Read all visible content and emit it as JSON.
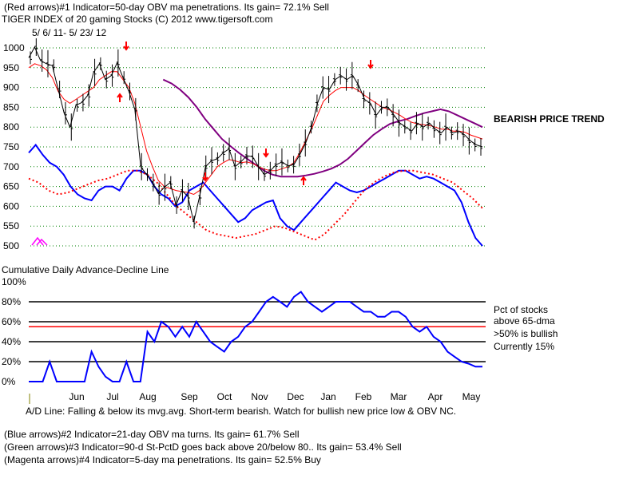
{
  "header": {
    "line1": "(Red arrows)#1 Indicator=50-day OBV ma penetrations. Its gain= 72.1% Sell",
    "line2": "TIGER INDEX of  20 gaming Stocks  (C) 2012  www.tigersoft.com",
    "date_range": "5/ 6/ 11- 5/ 23/ 12"
  },
  "annotations": {
    "bearish_trend": "BEARISH PRICE TREND",
    "ad_title": "Cumulative Daily Advance-Decline Line",
    "pct_label_1": "Pct of stocks",
    "pct_label_2": "above 65-dma",
    "pct_label_3": ">50% is bullish",
    "pct_label_4": "Currently  15%",
    "ad_note": "A/D Line: Falling & below its mvg.avg. Short-term bearish. Watch for bullish new price low & OBV NC."
  },
  "footer": {
    "line1": "(Blue arrows)#2 Indicator=21-day OBV ma turns. Its gain= 61.7% Sell",
    "line2": "(Green arrows)#3 Indicator=90-d St-PctD goes back above 20/below 80.. Its gain= 53.4% Sell",
    "line3": "(Magenta arrows)#4 Indicator=5-day ma penetrations. Its gain= 52.5% Buy"
  },
  "colors": {
    "price": "#000000",
    "ma_short": "#ff0000",
    "ma_long": "#800080",
    "obv": "#0000ff",
    "ma_dotted": "#ff0000",
    "grid": "#008000",
    "ref": "#000000",
    "ref50": "#ff0000",
    "pct": "#0000ff",
    "magenta": "#ff00ff"
  },
  "chart_data": [
    {
      "type": "line",
      "title": "TIGER INDEX of 20 gaming Stocks",
      "y_ticks": [
        1000,
        950,
        900,
        850,
        800,
        750,
        700,
        650,
        600,
        550,
        500
      ],
      "ylim": [
        500,
        1000
      ],
      "x_labels": [
        "Jun",
        "Jul",
        "Aug",
        "Sep",
        "Oct",
        "Nov",
        "Dec",
        "Jan",
        "Feb",
        "Mar",
        "Apr",
        "May"
      ],
      "series": [
        {
          "name": "Price",
          "values": [
            975,
            1002,
            968,
            960,
            955,
            895,
            835,
            800,
            855,
            862,
            880,
            938,
            960,
            920,
            930,
            962,
            925,
            890,
            845,
            700,
            680,
            660,
            632,
            648,
            660,
            603,
            640,
            625,
            560,
            625,
            700,
            715,
            720,
            735,
            745,
            700,
            712,
            728,
            725,
            700,
            680,
            690,
            705,
            712,
            702,
            705,
            730,
            760,
            800,
            860,
            900,
            895,
            920,
            930,
            920,
            930,
            905,
            870,
            860,
            830,
            850,
            850,
            830,
            810,
            800,
            790,
            810,
            800,
            810,
            795,
            785,
            800,
            785,
            790,
            780,
            765,
            755,
            750
          ]
        },
        {
          "name": "MA short",
          "values": [
            950,
            960,
            955,
            945,
            925,
            890,
            870,
            860,
            870,
            880,
            890,
            900,
            920,
            930,
            940,
            940,
            920,
            900,
            860,
            800,
            740,
            700,
            665,
            650,
            645,
            640,
            637,
            635,
            630,
            640,
            660,
            680,
            700,
            710,
            718,
            715,
            710,
            712,
            708,
            700,
            694,
            690,
            690,
            695,
            700,
            710,
            735,
            765,
            795,
            830,
            865,
            880,
            892,
            900,
            900,
            900,
            892,
            880,
            870,
            860,
            850,
            845,
            838,
            830,
            820,
            812,
            808,
            806,
            804,
            800,
            795,
            795,
            790,
            790,
            787,
            780,
            775,
            770
          ]
        },
        {
          "name": "MA long",
          "values": [
            null,
            null,
            null,
            null,
            null,
            null,
            null,
            null,
            null,
            null,
            null,
            null,
            null,
            null,
            null,
            null,
            920,
            910,
            895,
            875,
            850,
            820,
            795,
            770,
            752,
            735,
            720,
            705,
            690,
            680,
            675,
            675,
            675,
            678,
            682,
            688,
            695,
            705,
            720,
            740,
            760,
            780,
            795,
            808,
            815,
            820,
            828,
            835,
            840,
            845,
            840,
            830,
            820,
            810,
            800
          ]
        },
        {
          "name": "OBV",
          "values": [
            735,
            755,
            730,
            710,
            700,
            680,
            650,
            630,
            620,
            615,
            640,
            650,
            650,
            640,
            670,
            690,
            690,
            680,
            650,
            630,
            620,
            600,
            610,
            640,
            650,
            660,
            640,
            620,
            600,
            580,
            560,
            570,
            590,
            600,
            610,
            615,
            570,
            550,
            540,
            560,
            580,
            600,
            620,
            640,
            660,
            650,
            640,
            635,
            640,
            650,
            660,
            670,
            680,
            690,
            690,
            680,
            670,
            675,
            670,
            660,
            650,
            640,
            610,
            560,
            520,
            500
          ]
        },
        {
          "name": "OBV MA dotted",
          "values": [
            670,
            660,
            640,
            630,
            635,
            645,
            655,
            665,
            670,
            680,
            690,
            690,
            680,
            660,
            630,
            600,
            580,
            560,
            540,
            530,
            525,
            520,
            525,
            530,
            540,
            550,
            545,
            535,
            525,
            515,
            530,
            555,
            580,
            610,
            640,
            660,
            675,
            685,
            690,
            690,
            685,
            680,
            670,
            660,
            640,
            620,
            595
          ]
        }
      ]
    },
    {
      "type": "line",
      "title": "Pct of stocks above 65-dma",
      "y_ticks": [
        "100%",
        "80%",
        "60%",
        "40%",
        "20%",
        "0%"
      ],
      "ylim": [
        0,
        100
      ],
      "series": [
        {
          "name": "Pct",
          "values": [
            0,
            0,
            0,
            20,
            0,
            0,
            0,
            0,
            0,
            30,
            15,
            5,
            0,
            0,
            20,
            0,
            0,
            50,
            40,
            60,
            55,
            45,
            55,
            45,
            60,
            50,
            40,
            35,
            30,
            40,
            45,
            55,
            60,
            70,
            80,
            85,
            80,
            75,
            85,
            90,
            80,
            75,
            70,
            75,
            80,
            80,
            80,
            75,
            70,
            70,
            65,
            65,
            70,
            70,
            65,
            55,
            50,
            55,
            45,
            40,
            30,
            25,
            20,
            18,
            15,
            15
          ]
        }
      ]
    }
  ]
}
